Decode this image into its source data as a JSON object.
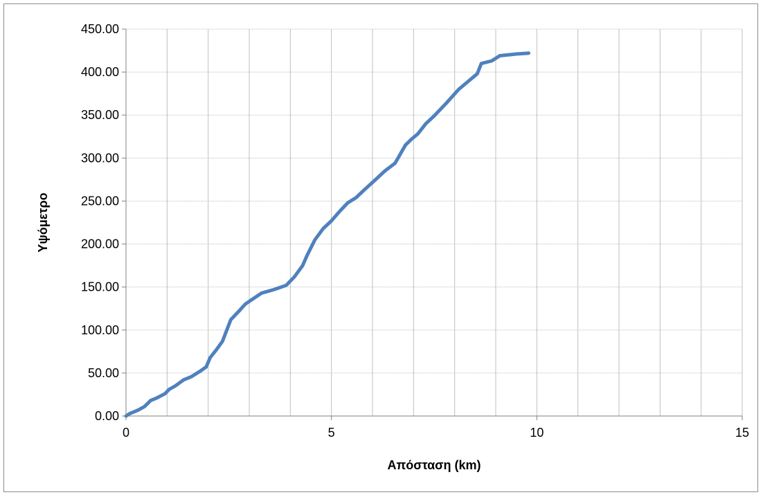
{
  "chart_data": {
    "type": "line",
    "title": "",
    "xlabel": "Απόσταση (km)",
    "ylabel": "Υψόμετρο",
    "xlim": [
      0,
      15
    ],
    "ylim": [
      0,
      450
    ],
    "x_ticks": [
      "0",
      "5",
      "10",
      "15"
    ],
    "y_ticks": [
      "0.00",
      "50.00",
      "100.00",
      "150.00",
      "200.00",
      "250.00",
      "300.00",
      "350.00",
      "400.00",
      "450.00"
    ],
    "grid": true,
    "legend": "none",
    "series": [
      {
        "color": "#4f81bd",
        "x": [
          0,
          0.1,
          0.3,
          0.45,
          0.6,
          0.75,
          0.95,
          1.05,
          1.2,
          1.4,
          1.6,
          1.8,
          1.95,
          2.05,
          2.2,
          2.35,
          2.55,
          2.75,
          2.9,
          3.05,
          3.3,
          3.6,
          3.9,
          4.1,
          4.3,
          4.4,
          4.6,
          4.8,
          5.0,
          5.2,
          5.4,
          5.6,
          5.8,
          6.1,
          6.3,
          6.55,
          6.8,
          6.95,
          7.1,
          7.3,
          7.5,
          7.8,
          8.1,
          8.3,
          8.55,
          8.65,
          8.9,
          9.1,
          9.5,
          9.8
        ],
        "y": [
          0,
          3,
          7,
          11,
          18,
          21,
          26,
          31,
          35,
          42,
          46,
          52,
          57,
          68,
          77,
          87,
          112,
          122,
          130,
          135,
          143,
          147,
          152,
          162,
          175,
          186,
          205,
          218,
          227,
          238,
          248,
          254,
          263,
          276,
          285,
          294,
          315,
          322,
          328,
          340,
          349,
          364,
          380,
          388,
          398,
          410,
          413,
          419,
          421,
          422
        ]
      }
    ]
  }
}
